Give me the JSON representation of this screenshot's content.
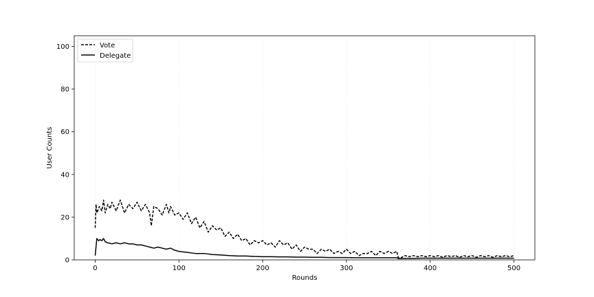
{
  "chart_data": {
    "type": "line",
    "title": "",
    "xlabel": "Rounds",
    "ylabel": "User Counts",
    "xlim": [
      -25,
      525
    ],
    "ylim": [
      0,
      105
    ],
    "xticks": [
      0,
      100,
      200,
      300,
      400,
      500
    ],
    "yticks": [
      0,
      20,
      40,
      60,
      80,
      100
    ],
    "grid": "vertical, light dotted",
    "legend_position": "top-left",
    "series": [
      {
        "name": "Vote",
        "line_style": "dashed",
        "color": "#000000",
        "x": [
          0,
          1,
          2,
          5,
          8,
          10,
          12,
          15,
          18,
          20,
          25,
          30,
          35,
          40,
          45,
          50,
          55,
          60,
          65,
          67,
          70,
          75,
          80,
          85,
          88,
          90,
          95,
          100,
          105,
          110,
          115,
          120,
          125,
          130,
          135,
          140,
          145,
          150,
          155,
          160,
          165,
          170,
          175,
          180,
          185,
          190,
          195,
          200,
          205,
          210,
          215,
          220,
          225,
          230,
          235,
          240,
          245,
          250,
          255,
          260,
          265,
          270,
          275,
          280,
          285,
          290,
          295,
          300,
          305,
          310,
          315,
          320,
          325,
          330,
          335,
          340,
          345,
          350,
          355,
          360,
          362,
          365,
          370,
          375,
          380,
          385,
          390,
          395,
          400,
          405,
          410,
          415,
          420,
          425,
          430,
          435,
          440,
          445,
          450,
          455,
          460,
          465,
          470,
          475,
          480,
          485,
          490,
          495,
          500
        ],
        "y": [
          15,
          26,
          22,
          25,
          23,
          28,
          22,
          26,
          24,
          27,
          23,
          28,
          22,
          26,
          24,
          27,
          23,
          26,
          22,
          16,
          25,
          24,
          21,
          26,
          22,
          25,
          21,
          22,
          19,
          22,
          17,
          20,
          15,
          18,
          13,
          16,
          14,
          15,
          11,
          13,
          10,
          12,
          9,
          10,
          7,
          9,
          8,
          9,
          7,
          8,
          6,
          9,
          7,
          8,
          5,
          7,
          4,
          6,
          5,
          5,
          3,
          5,
          4,
          5,
          3,
          4,
          3,
          5,
          3,
          4,
          2,
          3,
          3,
          4,
          2,
          4,
          3,
          4,
          3,
          4,
          1,
          1,
          2,
          1.5,
          2,
          1.5,
          2,
          1.5,
          2,
          1.5,
          2,
          1.2,
          2,
          1.5,
          2,
          1.2,
          2,
          1.5,
          2,
          1.2,
          2,
          1.5,
          2,
          1.2,
          2,
          1.5,
          2,
          1.5,
          2
        ]
      },
      {
        "name": "Delegate",
        "line_style": "solid",
        "color": "#000000",
        "x": [
          0,
          2,
          4,
          6,
          8,
          10,
          12,
          15,
          20,
          25,
          30,
          35,
          40,
          45,
          50,
          55,
          60,
          65,
          70,
          75,
          80,
          85,
          90,
          95,
          100,
          110,
          120,
          130,
          140,
          150,
          160,
          170,
          180,
          190,
          200,
          210,
          220,
          230,
          240,
          250,
          260,
          270,
          280,
          290,
          300,
          310,
          320,
          330,
          340,
          350,
          360,
          362,
          370,
          380,
          390,
          400,
          420,
          440,
          460,
          480,
          500
        ],
        "y": [
          2,
          10,
          9,
          9.5,
          9,
          10,
          8.5,
          8,
          7.5,
          8,
          7.5,
          8,
          7.5,
          7.5,
          7,
          7,
          6.5,
          6,
          5.5,
          6,
          5.5,
          5,
          5.5,
          4.5,
          4,
          3.5,
          3,
          3,
          2.5,
          2.3,
          2,
          1.8,
          1.8,
          1.6,
          1.5,
          1.5,
          1.4,
          1.4,
          1.3,
          1.3,
          1.2,
          1.2,
          1.1,
          1.1,
          1.1,
          1,
          1,
          1,
          1,
          1,
          1,
          0.6,
          0.7,
          0.7,
          0.8,
          0.8,
          0.8,
          0.8,
          0.8,
          0.8,
          0.8
        ]
      }
    ]
  }
}
